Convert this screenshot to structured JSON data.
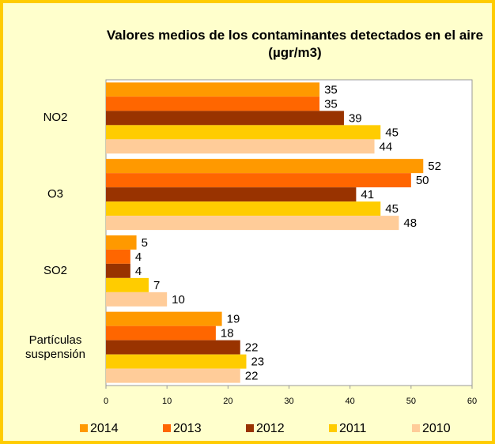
{
  "chart_data": {
    "type": "bar",
    "orientation": "horizontal",
    "title": "Valores medios de los contaminantes detectados en el aire (µgr/m3)",
    "categories": [
      "NO2",
      "O3",
      "SO2",
      "Partículas suspensión"
    ],
    "series": [
      {
        "name": "2014",
        "color": "#FF9900",
        "values": [
          35,
          52,
          5,
          19
        ]
      },
      {
        "name": "2013",
        "color": "#FF6600",
        "values": [
          35,
          50,
          4,
          18
        ]
      },
      {
        "name": "2012",
        "color": "#993300",
        "values": [
          39,
          41,
          4,
          22
        ]
      },
      {
        "name": "2011",
        "color": "#FFCC00",
        "values": [
          45,
          45,
          7,
          23
        ]
      },
      {
        "name": "2010",
        "color": "#FFCC99",
        "values": [
          44,
          48,
          10,
          22
        ]
      }
    ],
    "xlim": [
      0,
      60
    ],
    "xticks": [
      0,
      10,
      20,
      30,
      40,
      50,
      60
    ],
    "grid": false,
    "legend": "bottom"
  }
}
